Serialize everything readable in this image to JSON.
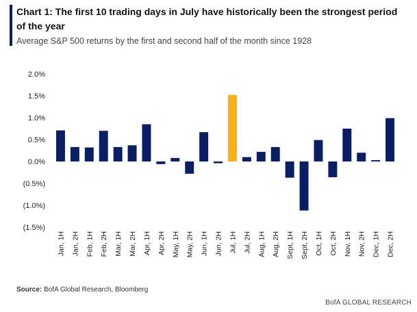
{
  "header": {
    "title": "Chart 1: The first 10 trading days in July have historically been the strongest period of the year",
    "subtitle": "Average S&P 500 returns by the first and second half of the month since 1928"
  },
  "source": {
    "label": "Source:",
    "text": " BofA Global Research, Bloomberg"
  },
  "footer": {
    "brand": "BofA GLOBAL RESEARCH"
  },
  "colors": {
    "bar": "#0a1f63",
    "highlight": "#f5b01a",
    "accent": "#0a1f63"
  },
  "chart_data": {
    "type": "bar",
    "categories": [
      "Jan, 1H",
      "Jan, 2H",
      "Feb, 1H",
      "Feb, 2H",
      "Mar, 1H",
      "Mar, 2H",
      "Apr, 1H",
      "Apr, 2H",
      "May, 1H",
      "May, 2H",
      "Jun, 1H",
      "Jun, 2H",
      "Jul, 1H",
      "Jul, 2H",
      "Aug, 1H",
      "Aug, 2H",
      "Sept, 1H",
      "Sept, 2H",
      "Oct, 1H",
      "Oct, 2H",
      "Nov, 1H",
      "Nov, 2H",
      "Dec, 1H",
      "Dec, 2H"
    ],
    "values": [
      0.71,
      0.33,
      0.32,
      0.7,
      0.33,
      0.37,
      0.85,
      -0.06,
      0.08,
      -0.28,
      0.67,
      -0.04,
      1.52,
      0.1,
      0.22,
      0.33,
      -0.37,
      -1.12,
      0.49,
      -0.36,
      0.75,
      0.2,
      0.03,
      0.99
    ],
    "highlight_category": "Jul, 1H",
    "yticks": [
      "2.0%",
      "1.5%",
      "1.0%",
      "0.5%",
      "0.0%",
      "(0.5%)",
      "(1.0%)",
      "(1.5%)"
    ],
    "ytick_values": [
      2.0,
      1.5,
      1.0,
      0.5,
      0.0,
      -0.5,
      -1.0,
      -1.5
    ],
    "ylim": [
      -1.5,
      2.0
    ],
    "grid": false,
    "legend": "none"
  }
}
